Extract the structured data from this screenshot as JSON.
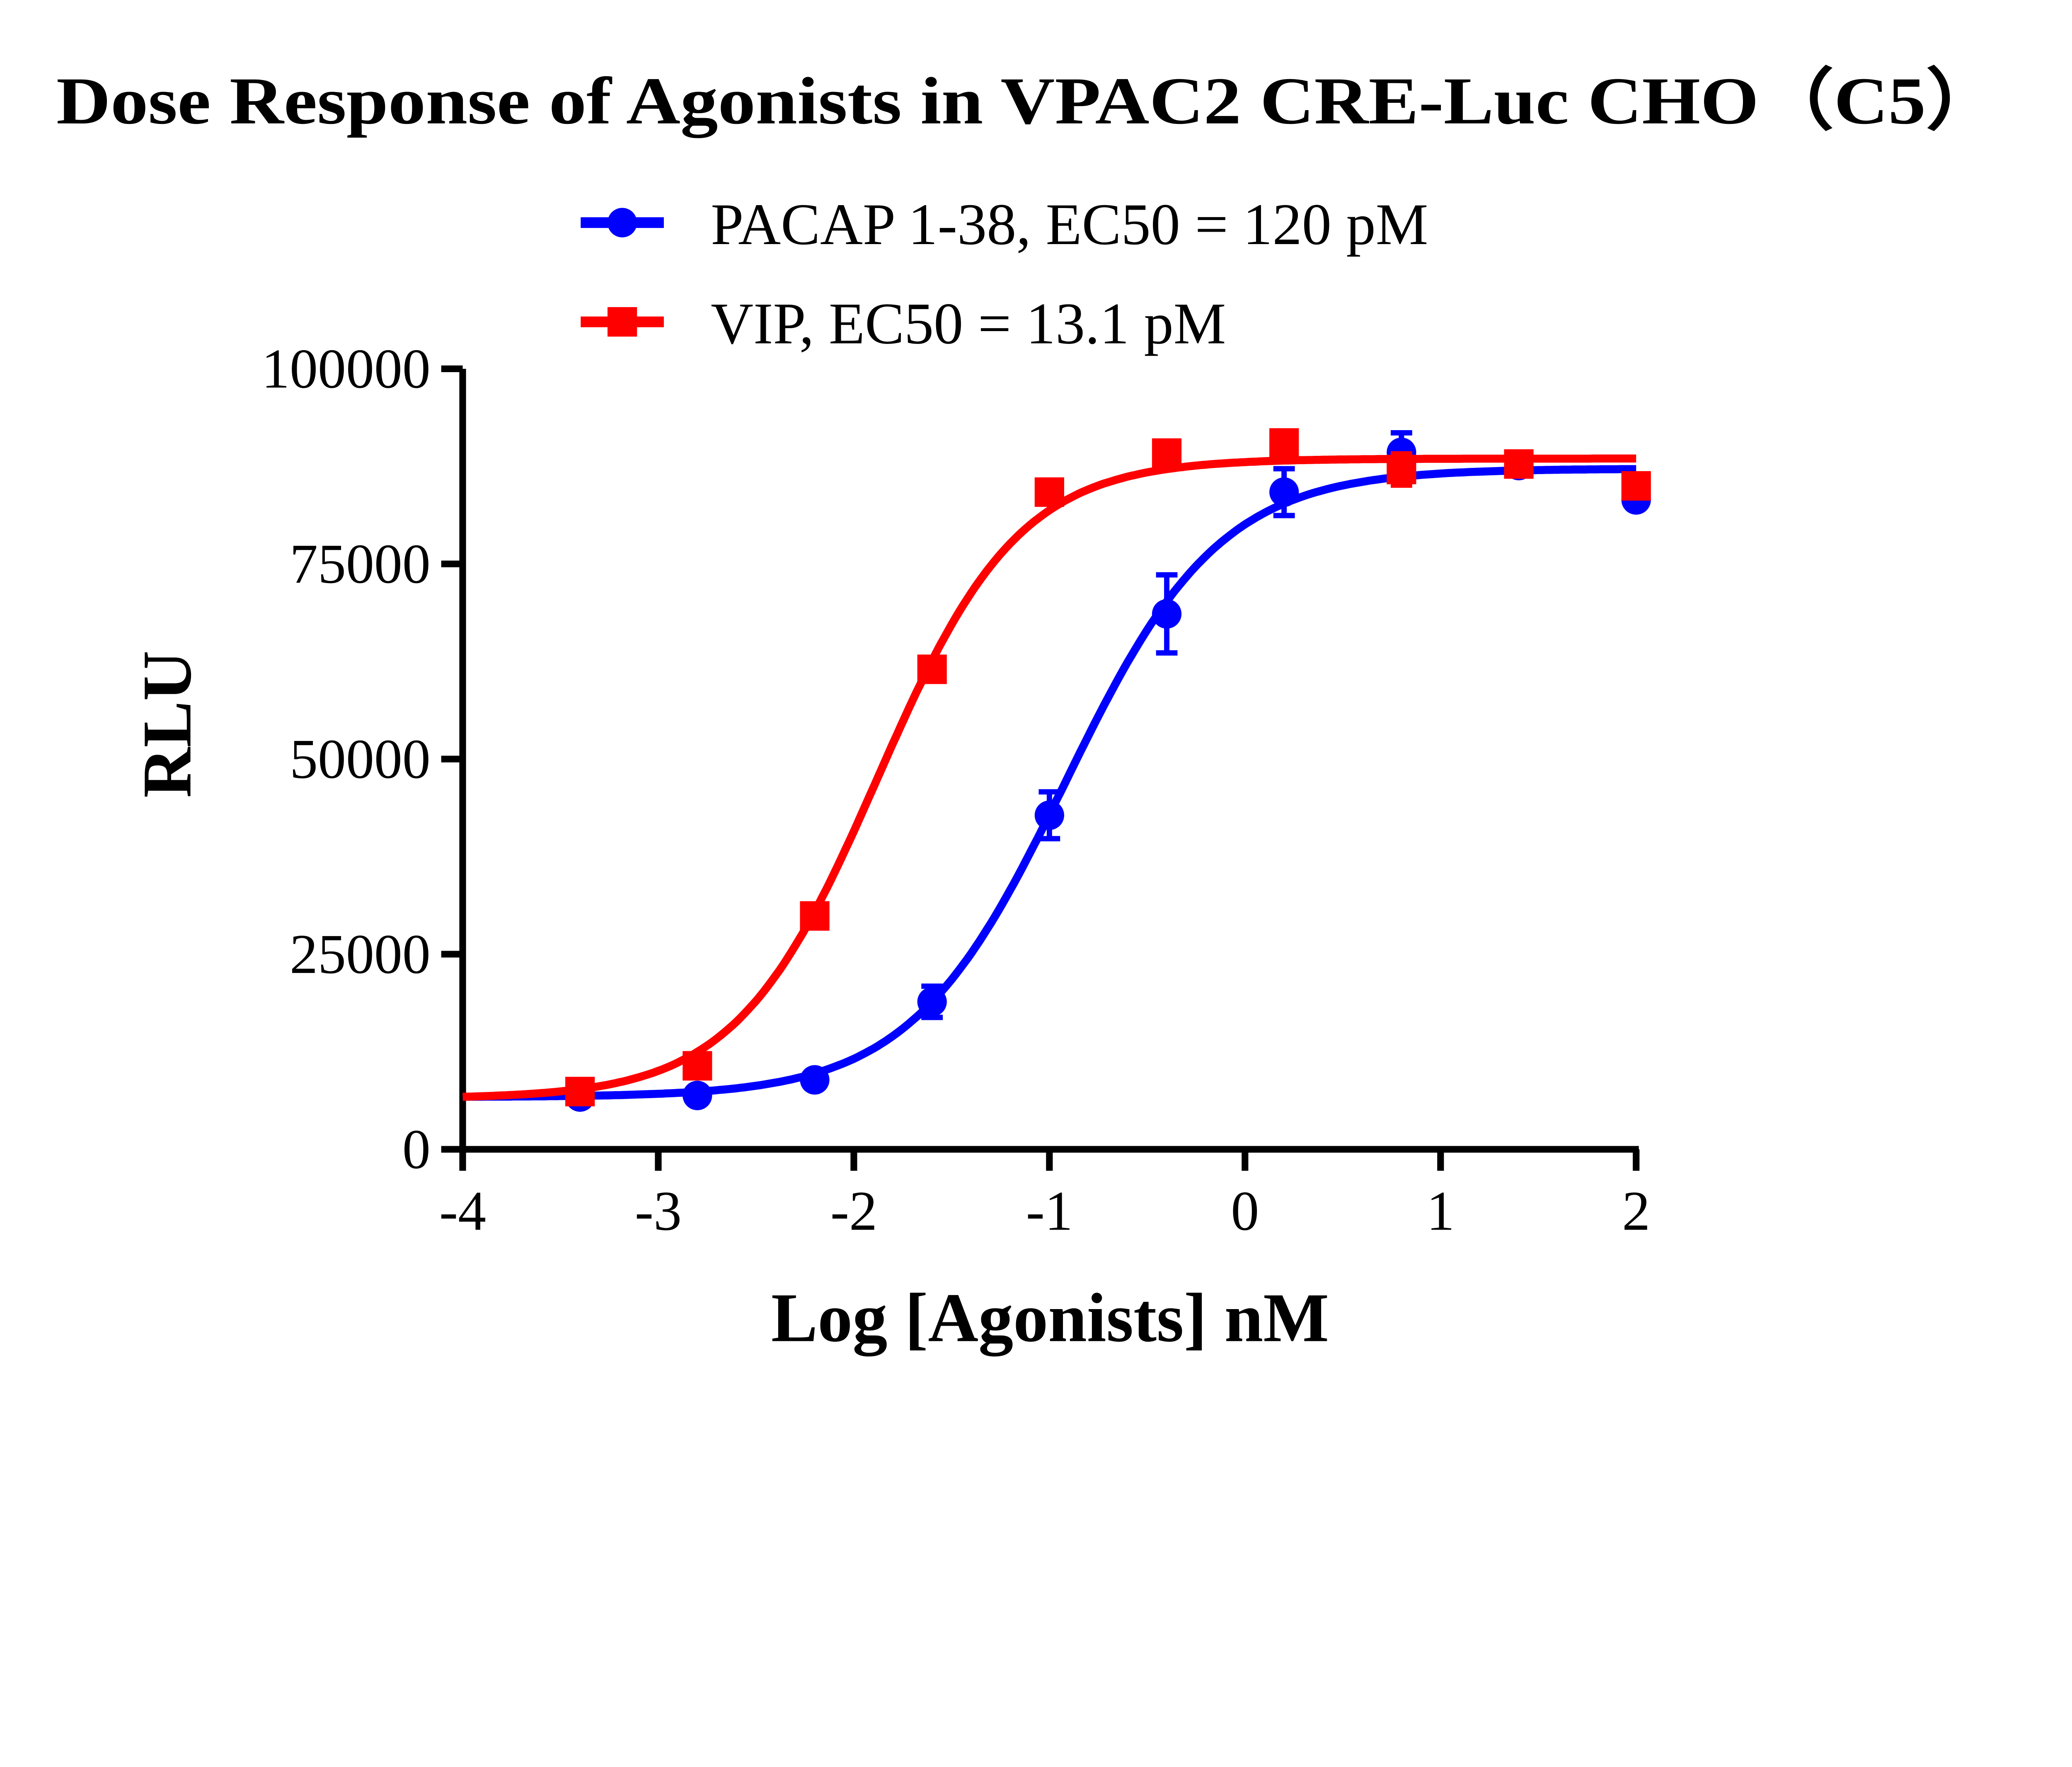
{
  "chart_data": {
    "type": "scatter",
    "title": "Dose Response of Agonists in VPAC2 CRE-Luc CHO（C5）",
    "xlabel": "Log [Agonists] nM",
    "ylabel": "RLU",
    "xlim": [
      -4,
      2
    ],
    "ylim": [
      0,
      100000
    ],
    "x_ticks": [
      "-4",
      "-3",
      "-2",
      "-1",
      "0",
      "1",
      "2"
    ],
    "y_ticks": [
      "0",
      "25000",
      "50000",
      "75000",
      "100000"
    ],
    "grid": false,
    "legend_position": "top",
    "x": [
      -3.4,
      -2.8,
      -2.2,
      -1.6,
      -1.0,
      -0.4,
      0.2,
      0.8,
      1.4,
      2.0
    ],
    "series": [
      {
        "name": "PACAP 1-38, EC50 = 120 pM",
        "color": "#0000ff",
        "marker": "circle",
        "values": [
          6700,
          6900,
          8900,
          18900,
          42800,
          68600,
          84200,
          89300,
          87600,
          83200
        ],
        "errors": [
          500,
          500,
          500,
          2000,
          3000,
          5000,
          3000,
          2500,
          800,
          800
        ],
        "fit": {
          "bottom": 6700,
          "top": 87200,
          "logEC50": -0.92,
          "hill": 1.1
        }
      },
      {
        "name": "VIP, EC50 = 13.1 pM",
        "color": "#ff0000",
        "marker": "square",
        "values": [
          7400,
          10700,
          29900,
          61500,
          84200,
          89200,
          90500,
          87100,
          87800,
          85000
        ],
        "errors": [
          500,
          800,
          800,
          800,
          800,
          800,
          800,
          2000,
          800,
          800
        ],
        "fit": {
          "bottom": 6500,
          "top": 88500,
          "logEC50": -1.88,
          "hill": 1.2
        }
      }
    ]
  }
}
